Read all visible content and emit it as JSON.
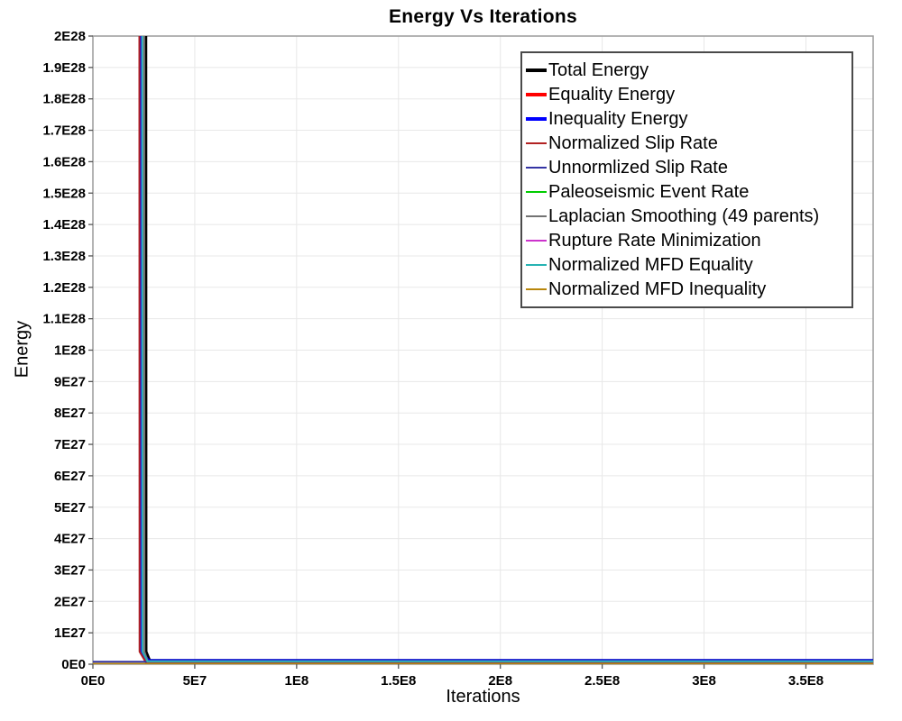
{
  "chart_data": {
    "type": "line",
    "title": "Energy Vs Iterations",
    "xlabel": "Iterations",
    "ylabel": "Energy",
    "xlim": [
      0,
      383000000
    ],
    "ylim": [
      0,
      2e+28
    ],
    "grid": true,
    "legend_position": "top-right-inside",
    "summary": "All energy series plunge from above the axis maximum (2E28) almost vertically to near zero at about 2.3E7 iterations and stay flat near zero thereafter; Unnormlized Slip Rate and Normalized MFD Inequality remain near zero for the whole range.",
    "x_ticks": [
      {
        "v": 0,
        "label": "0E0"
      },
      {
        "v": 50000000,
        "label": "5E7"
      },
      {
        "v": 100000000,
        "label": "1E8"
      },
      {
        "v": 150000000,
        "label": "1.5E8"
      },
      {
        "v": 200000000,
        "label": "2E8"
      },
      {
        "v": 250000000,
        "label": "2.5E8"
      },
      {
        "v": 300000000,
        "label": "3E8"
      },
      {
        "v": 350000000,
        "label": "3.5E8"
      }
    ],
    "y_ticks": [
      {
        "v": 0,
        "label": "0E0"
      },
      {
        "v": 1e+27,
        "label": "1E27"
      },
      {
        "v": 2e+27,
        "label": "2E27"
      },
      {
        "v": 3e+27,
        "label": "3E27"
      },
      {
        "v": 4e+27,
        "label": "4E27"
      },
      {
        "v": 5e+27,
        "label": "5E27"
      },
      {
        "v": 6e+27,
        "label": "6E27"
      },
      {
        "v": 7e+27,
        "label": "7E27"
      },
      {
        "v": 8e+27,
        "label": "8E27"
      },
      {
        "v": 9e+27,
        "label": "9E27"
      },
      {
        "v": 1e+28,
        "label": "1E28"
      },
      {
        "v": 1.1e+28,
        "label": "1.1E28"
      },
      {
        "v": 1.2e+28,
        "label": "1.2E28"
      },
      {
        "v": 1.3e+28,
        "label": "1.3E28"
      },
      {
        "v": 1.4e+28,
        "label": "1.4E28"
      },
      {
        "v": 1.5e+28,
        "label": "1.5E28"
      },
      {
        "v": 1.6e+28,
        "label": "1.6E28"
      },
      {
        "v": 1.7e+28,
        "label": "1.7E28"
      },
      {
        "v": 1.8e+28,
        "label": "1.8E28"
      },
      {
        "v": 1.9e+28,
        "label": "1.9E28"
      },
      {
        "v": 2e+28,
        "label": "2E28"
      }
    ],
    "style": {
      "background": "#ffffff",
      "grid_color": "#e8e8e8",
      "plot_border": "#9c9c9c",
      "tick_color": "#555555",
      "text_color": "#000000",
      "legend_border": "#4a4a4a"
    },
    "series": [
      {
        "name": "Total Energy",
        "color": "#000000",
        "width": 3.5,
        "x": [
          25900000,
          26000000,
          27800000,
          383000000
        ],
        "y": [
          2e+28,
          4e+26,
          1.15e+26,
          1.15e+26
        ]
      },
      {
        "name": "Equality Energy",
        "color": "#ff0000",
        "width": 3.5,
        "x": [
          23800000,
          23900000,
          27000000,
          383000000
        ],
        "y": [
          2e+28,
          4e+26,
          1e+26,
          1e+26
        ]
      },
      {
        "name": "Inequality Energy",
        "color": "#0000ff",
        "width": 3.5,
        "x": [
          23800000,
          23900000,
          27200000,
          383000000
        ],
        "y": [
          2e+28,
          4e+26,
          1.1e+26,
          1.1e+26
        ]
      },
      {
        "name": "Normalized Slip Rate",
        "color": "#b22222",
        "width": 2,
        "x": [
          22800000,
          22900000,
          26000000,
          383000000
        ],
        "y": [
          2e+28,
          4e+26,
          6e+25,
          6e+25
        ]
      },
      {
        "name": "Unnormlized Slip Rate",
        "color": "#3434a4",
        "width": 2,
        "x": [
          0,
          383000000
        ],
        "y": [
          8e+25,
          8e+25
        ]
      },
      {
        "name": "Paleoseismic Event Rate",
        "color": "#00cc00",
        "width": 2,
        "x": [
          24200000,
          24300000,
          26800000,
          383000000
        ],
        "y": [
          2e+28,
          4e+26,
          9.5e+25,
          9.5e+25
        ]
      },
      {
        "name": "Laplacian Smoothing (49 parents)",
        "color": "#737373",
        "width": 2,
        "x": [
          25200000,
          25300000,
          26900000,
          383000000
        ],
        "y": [
          2e+28,
          4e+26,
          9e+25,
          9e+25
        ]
      },
      {
        "name": "Rupture Rate Minimization",
        "color": "#cc33cc",
        "width": 2,
        "x": [
          24200000,
          24300000,
          26800000,
          383000000
        ],
        "y": [
          2e+28,
          4e+26,
          9.5e+25,
          9.5e+25
        ]
      },
      {
        "name": "Normalized MFD Equality",
        "color": "#26b3b3",
        "width": 2,
        "x": [
          24200000,
          24300000,
          26800000,
          383000000
        ],
        "y": [
          2e+28,
          4e+26,
          9.5e+25,
          9.5e+25
        ]
      },
      {
        "name": "Normalized MFD Inequality",
        "color": "#b8860b",
        "width": 2,
        "x": [
          0,
          383000000
        ],
        "y": [
          1.5e+25,
          1.5e+25
        ]
      }
    ]
  }
}
